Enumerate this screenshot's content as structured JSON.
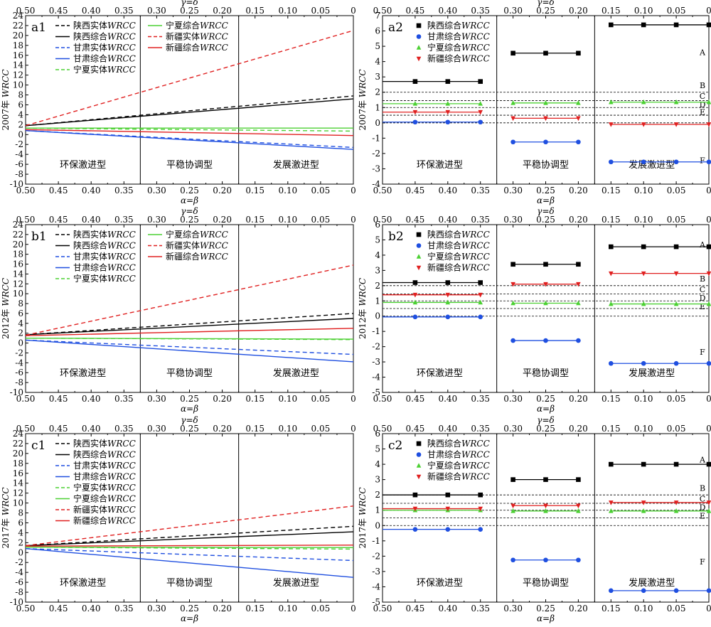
{
  "figure": {
    "top_axis_label": "γ=δ",
    "bottom_axis_label": "α=β",
    "x_ticks": [
      "0.50",
      "0.45",
      "0.40",
      "0.35",
      "0.30",
      "0.25",
      "0.20",
      "0.15",
      "0.10",
      "0.05",
      "0"
    ],
    "zone_labels": [
      "环保激进型",
      "平稳协调型",
      "发展激进型"
    ],
    "threshold_labels": [
      "A",
      "B",
      "C",
      "D",
      "E",
      "F"
    ],
    "threshold_values": [
      4.5,
      2,
      1.45,
      1,
      0.5,
      0
    ]
  },
  "series_styles": {
    "陕西": "#000000",
    "甘肃": "#1f4fe0",
    "宁夏": "#4cd033",
    "新疆": "#e02020"
  },
  "chart_data": [
    {
      "id": "a1",
      "type": "line",
      "tag": "a1",
      "ylabel": "2007年 WRCC",
      "xlim": [
        0.5,
        0
      ],
      "ylim": [
        -10,
        24
      ],
      "yticks": [
        -10,
        -8,
        -6,
        -4,
        -2,
        0,
        2,
        4,
        6,
        8,
        10,
        12,
        14,
        16,
        18,
        20,
        22,
        24
      ],
      "legend_columns": 2,
      "series": [
        {
          "name": "陕西实体WRCC",
          "province": "陕西",
          "dash": true,
          "x": [
            0.5,
            0
          ],
          "y": [
            1.8,
            7.8
          ]
        },
        {
          "name": "陕西综合WRCC",
          "province": "陕西",
          "dash": false,
          "x": [
            0.5,
            0
          ],
          "y": [
            1.8,
            7.2
          ]
        },
        {
          "name": "甘肃实体WRCC",
          "province": "甘肃",
          "dash": true,
          "x": [
            0.5,
            0
          ],
          "y": [
            0.8,
            -2.6
          ]
        },
        {
          "name": "甘肃综合WRCC",
          "province": "甘肃",
          "dash": false,
          "x": [
            0.5,
            0
          ],
          "y": [
            0.8,
            -3.0
          ]
        },
        {
          "name": "宁夏实体WRCC",
          "province": "宁夏",
          "dash": true,
          "x": [
            0.5,
            0
          ],
          "y": [
            1.3,
            0.7
          ]
        },
        {
          "name": "宁夏综合WRCC",
          "province": "宁夏",
          "dash": false,
          "x": [
            0.5,
            0
          ],
          "y": [
            1.3,
            1.3
          ]
        },
        {
          "name": "新疆实体WRCC",
          "province": "新疆",
          "dash": true,
          "x": [
            0.5,
            0
          ],
          "y": [
            1.8,
            21.0
          ]
        },
        {
          "name": "新疆综合WRCC",
          "province": "新疆",
          "dash": false,
          "x": [
            0.5,
            0
          ],
          "y": [
            1.0,
            -0.2
          ]
        }
      ]
    },
    {
      "id": "a2",
      "type": "scatter",
      "tag": "a2",
      "ylabel": "2007年 WRCC",
      "xlim": [
        0.5,
        0
      ],
      "ylim": [
        -4,
        7
      ],
      "yticks": [
        -4,
        -3,
        -2,
        -1,
        0,
        1,
        2,
        3,
        4,
        5,
        6,
        7
      ],
      "threshold_label_pos": [
        4.6,
        2.45,
        1.75,
        1.2,
        0.7,
        -2.45
      ],
      "series": [
        {
          "name": "陕西综合WRCC",
          "province": "陕西",
          "marker": "square",
          "x": [
            0.45,
            0.4,
            0.35,
            0.3,
            0.25,
            0.2,
            0.15,
            0.1,
            0.05,
            0
          ],
          "y": [
            2.7,
            2.7,
            2.7,
            4.55,
            4.55,
            4.55,
            6.4,
            6.4,
            6.4,
            6.4
          ]
        },
        {
          "name": "甘肃综合WRCC",
          "province": "甘肃",
          "marker": "circle",
          "x": [
            0.45,
            0.4,
            0.35,
            0.3,
            0.25,
            0.2,
            0.15,
            0.1,
            0.05,
            0
          ],
          "y": [
            0.05,
            0.05,
            0.05,
            -1.25,
            -1.25,
            -1.25,
            -2.55,
            -2.55,
            -2.55,
            -2.55
          ]
        },
        {
          "name": "宁夏综合WRCC",
          "province": "宁夏",
          "marker": "triangle-up",
          "x": [
            0.45,
            0.4,
            0.35,
            0.3,
            0.25,
            0.2,
            0.15,
            0.1,
            0.05,
            0
          ],
          "y": [
            1.25,
            1.25,
            1.25,
            1.3,
            1.3,
            1.3,
            1.35,
            1.35,
            1.35,
            1.35
          ]
        },
        {
          "name": "新疆综合WRCC",
          "province": "新疆",
          "marker": "triangle-down",
          "x": [
            0.45,
            0.4,
            0.35,
            0.3,
            0.25,
            0.2,
            0.15,
            0.1,
            0.05,
            0
          ],
          "y": [
            0.7,
            0.7,
            0.7,
            0.3,
            0.3,
            0.3,
            -0.1,
            -0.1,
            -0.1,
            -0.1
          ]
        }
      ]
    },
    {
      "id": "b1",
      "type": "line",
      "tag": "b1",
      "ylabel": "2012年 WRCC",
      "xlim": [
        0.5,
        0
      ],
      "ylim": [
        -10,
        24
      ],
      "yticks": [
        -10,
        -8,
        -6,
        -4,
        -2,
        0,
        2,
        4,
        6,
        8,
        10,
        12,
        14,
        16,
        18,
        20,
        22,
        24
      ],
      "legend_columns": 2,
      "series": [
        {
          "name": "陕西实体WRCC",
          "province": "陕西",
          "dash": true,
          "x": [
            0.5,
            0
          ],
          "y": [
            1.7,
            6.0
          ]
        },
        {
          "name": "陕西综合WRCC",
          "province": "陕西",
          "dash": false,
          "x": [
            0.5,
            0
          ],
          "y": [
            1.7,
            5.0
          ]
        },
        {
          "name": "甘肃实体WRCC",
          "province": "甘肃",
          "dash": true,
          "x": [
            0.5,
            0
          ],
          "y": [
            0.6,
            -2.3
          ]
        },
        {
          "name": "甘肃综合WRCC",
          "province": "甘肃",
          "dash": false,
          "x": [
            0.5,
            0
          ],
          "y": [
            0.6,
            -3.8
          ]
        },
        {
          "name": "宁夏实体WRCC",
          "province": "宁夏",
          "dash": true,
          "x": [
            0.5,
            0
          ],
          "y": [
            1.0,
            0.7
          ]
        },
        {
          "name": "宁夏综合WRCC",
          "province": "宁夏",
          "dash": false,
          "x": [
            0.5,
            0
          ],
          "y": [
            1.0,
            0.8
          ]
        },
        {
          "name": "新疆实体WRCC",
          "province": "新疆",
          "dash": true,
          "x": [
            0.5,
            0
          ],
          "y": [
            1.6,
            15.8
          ]
        },
        {
          "name": "新疆综合WRCC",
          "province": "新疆",
          "dash": false,
          "x": [
            0.5,
            0
          ],
          "y": [
            1.5,
            3.0
          ]
        }
      ]
    },
    {
      "id": "b2",
      "type": "scatter",
      "tag": "b2",
      "ylabel": "2012年 WRCC",
      "xlim": [
        0.5,
        0
      ],
      "ylim": [
        -5,
        6
      ],
      "yticks": [
        -5,
        -4,
        -3,
        -2,
        -1,
        0,
        1,
        2,
        3,
        4,
        5,
        6
      ],
      "threshold_label_pos": [
        4.7,
        2.45,
        1.75,
        1.2,
        0.65,
        -2.35
      ],
      "series": [
        {
          "name": "陕西综合WRCC",
          "province": "陕西",
          "marker": "square",
          "x": [
            0.45,
            0.4,
            0.35,
            0.3,
            0.25,
            0.2,
            0.15,
            0.1,
            0.05,
            0
          ],
          "y": [
            2.2,
            2.2,
            2.2,
            3.4,
            3.4,
            3.4,
            4.55,
            4.55,
            4.55,
            4.55
          ]
        },
        {
          "name": "甘肃综合WRCC",
          "province": "甘肃",
          "marker": "circle",
          "x": [
            0.45,
            0.4,
            0.35,
            0.3,
            0.25,
            0.2,
            0.15,
            0.1,
            0.05,
            0
          ],
          "y": [
            -0.05,
            -0.05,
            -0.05,
            -1.6,
            -1.6,
            -1.6,
            -3.1,
            -3.1,
            -3.1,
            -3.1
          ]
        },
        {
          "name": "宁夏综合WRCC",
          "province": "宁夏",
          "marker": "triangle-up",
          "x": [
            0.45,
            0.4,
            0.35,
            0.3,
            0.25,
            0.2,
            0.15,
            0.1,
            0.05,
            0
          ],
          "y": [
            0.9,
            0.9,
            0.9,
            0.85,
            0.85,
            0.85,
            0.8,
            0.8,
            0.8,
            0.8
          ]
        },
        {
          "name": "新疆综合WRCC",
          "province": "新疆",
          "marker": "triangle-down",
          "x": [
            0.45,
            0.4,
            0.35,
            0.3,
            0.25,
            0.2,
            0.15,
            0.1,
            0.05,
            0
          ],
          "y": [
            1.4,
            1.4,
            1.4,
            2.1,
            2.1,
            2.1,
            2.8,
            2.8,
            2.8,
            2.8
          ]
        }
      ]
    },
    {
      "id": "c1",
      "type": "line",
      "tag": "c1",
      "ylabel": "2017年 WRCC",
      "xlim": [
        0.5,
        0
      ],
      "ylim": [
        -10,
        24
      ],
      "yticks": [
        -10,
        -8,
        -6,
        -4,
        -2,
        0,
        2,
        4,
        6,
        8,
        10,
        12,
        14,
        16,
        18,
        20,
        22,
        24
      ],
      "legend_columns": 1,
      "series": [
        {
          "name": "陕西实体WRCC",
          "province": "陕西",
          "dash": true,
          "x": [
            0.5,
            0
          ],
          "y": [
            1.4,
            5.3
          ]
        },
        {
          "name": "陕西综合WRCC",
          "province": "陕西",
          "dash": false,
          "x": [
            0.5,
            0
          ],
          "y": [
            1.4,
            4.2
          ]
        },
        {
          "name": "甘肃实体WRCC",
          "province": "甘肃",
          "dash": true,
          "x": [
            0.5,
            0
          ],
          "y": [
            0.8,
            -1.6
          ]
        },
        {
          "name": "甘肃综合WRCC",
          "province": "甘肃",
          "dash": false,
          "x": [
            0.5,
            0
          ],
          "y": [
            0.8,
            -5.0
          ]
        },
        {
          "name": "宁夏实体WRCC",
          "province": "宁夏",
          "dash": true,
          "x": [
            0.5,
            0
          ],
          "y": [
            1.1,
            0.7
          ]
        },
        {
          "name": "宁夏综合WRCC",
          "province": "宁夏",
          "dash": false,
          "x": [
            0.5,
            0
          ],
          "y": [
            1.1,
            1.0
          ]
        },
        {
          "name": "新疆实体WRCC",
          "province": "新疆",
          "dash": true,
          "x": [
            0.5,
            0
          ],
          "y": [
            1.4,
            9.4
          ]
        },
        {
          "name": "新疆综合WRCC",
          "province": "新疆",
          "dash": false,
          "x": [
            0.5,
            0
          ],
          "y": [
            1.3,
            1.5
          ]
        }
      ]
    },
    {
      "id": "c2",
      "type": "scatter",
      "tag": "c2",
      "ylabel": "2017年 WRCC",
      "xlim": [
        0.5,
        0
      ],
      "ylim": [
        -5,
        6
      ],
      "yticks": [
        -5,
        -4,
        -3,
        -2,
        -1,
        0,
        1,
        2,
        3,
        4,
        5,
        6
      ],
      "threshold_label_pos": [
        4.3,
        2.45,
        1.75,
        1.2,
        0.65,
        -2.35
      ],
      "series": [
        {
          "name": "陕西综合WRCC",
          "province": "陕西",
          "marker": "square",
          "x": [
            0.45,
            0.4,
            0.35,
            0.3,
            0.25,
            0.2,
            0.15,
            0.1,
            0.05,
            0
          ],
          "y": [
            2.0,
            2.0,
            2.0,
            3.0,
            3.0,
            3.0,
            4.0,
            4.0,
            4.0,
            4.0
          ]
        },
        {
          "name": "甘肃综合WRCC",
          "province": "甘肃",
          "marker": "circle",
          "x": [
            0.45,
            0.4,
            0.35,
            0.3,
            0.25,
            0.2,
            0.15,
            0.1,
            0.05,
            0
          ],
          "y": [
            -0.25,
            -0.25,
            -0.25,
            -2.25,
            -2.25,
            -2.25,
            -4.25,
            -4.25,
            -4.25,
            -4.25
          ]
        },
        {
          "name": "宁夏综合WRCC",
          "province": "宁夏",
          "marker": "triangle-up",
          "x": [
            0.45,
            0.4,
            0.35,
            0.3,
            0.25,
            0.2,
            0.15,
            0.1,
            0.05,
            0
          ],
          "y": [
            1.0,
            1.0,
            1.0,
            0.95,
            0.95,
            0.95,
            0.95,
            0.95,
            0.95,
            0.95
          ]
        },
        {
          "name": "新疆综合WRCC",
          "province": "新疆",
          "marker": "triangle-down",
          "x": [
            0.45,
            0.4,
            0.35,
            0.3,
            0.25,
            0.2,
            0.15,
            0.1,
            0.05,
            0
          ],
          "y": [
            1.1,
            1.1,
            1.1,
            1.3,
            1.3,
            1.3,
            1.5,
            1.5,
            1.5,
            1.5
          ]
        }
      ]
    }
  ]
}
